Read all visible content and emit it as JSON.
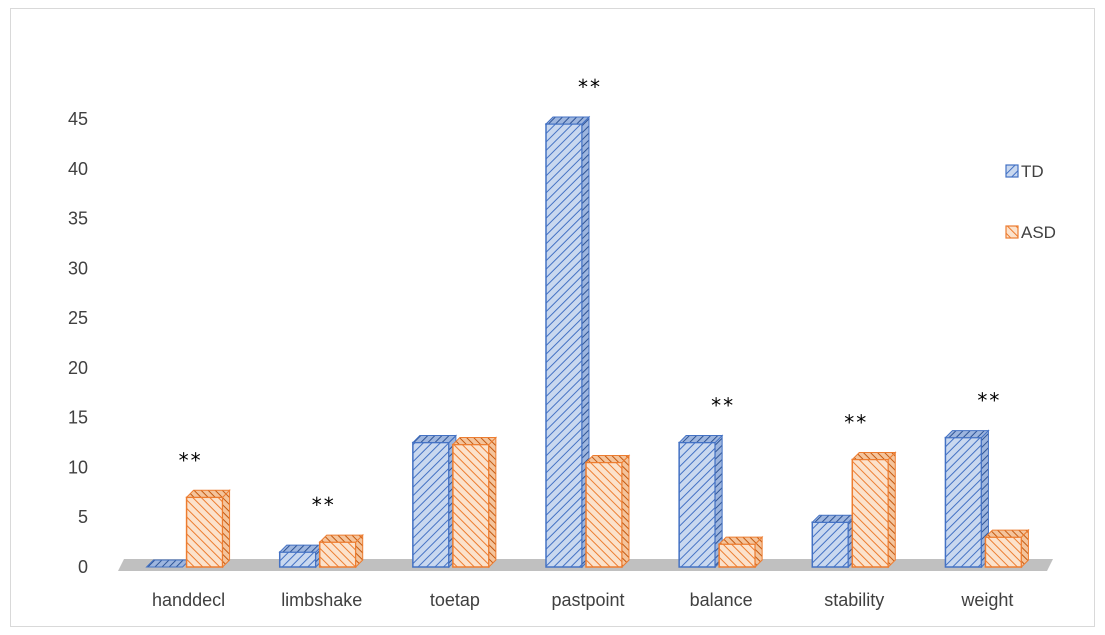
{
  "chart_data": {
    "type": "bar",
    "categories": [
      "handdecl",
      "limbshake",
      "toetap",
      "pastpoint",
      "balance",
      "stability",
      "weight"
    ],
    "series": [
      {
        "name": "TD",
        "values": [
          0,
          1.5,
          12.5,
          44.5,
          12.5,
          4.5,
          13
        ]
      },
      {
        "name": "ASD",
        "values": [
          7,
          2.5,
          12.3,
          10.5,
          2.3,
          10.8,
          3
        ]
      }
    ],
    "significance": [
      "**",
      "**",
      "",
      "**",
      "**",
      "**",
      "**"
    ],
    "ylim": [
      0,
      45
    ],
    "yticks": [
      0,
      5,
      10,
      15,
      20,
      25,
      30,
      35,
      40,
      45
    ],
    "legend_position": "right",
    "grid": false,
    "colors": {
      "TD": {
        "fill": "#c9d8ef",
        "stroke": "#4472c4",
        "hatch": "#4472c4"
      },
      "ASD": {
        "fill": "#fbe2cc",
        "stroke": "#ed7d31",
        "hatch": "#ed7d31"
      },
      "floor": "#c0c0c0"
    }
  }
}
